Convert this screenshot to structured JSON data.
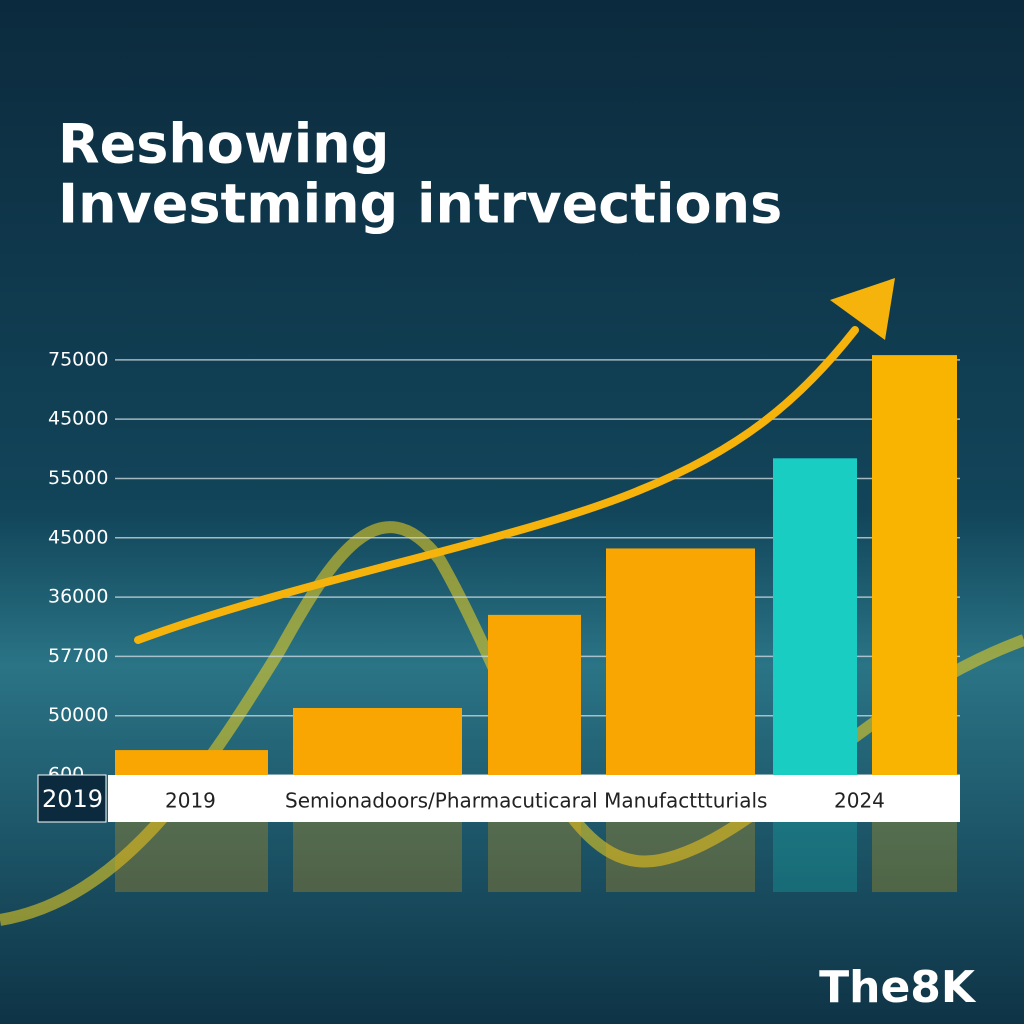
{
  "chart_data": {
    "type": "bar",
    "title": [
      "Reshowing",
      "Investming intrvections"
    ],
    "categories": [
      null,
      null,
      null,
      null,
      null,
      null
    ],
    "values": [
      0.42,
      1.13,
      2.7,
      3.82,
      5.34,
      7.08
    ],
    "colors": [
      "#f9a602",
      "#f9a602",
      "#f9a602",
      "#f9a602",
      "#19cdc3",
      "#f8b400"
    ],
    "ylim": [
      0,
      7.2
    ],
    "yticks": [
      {
        "value": 0,
        "label": "600"
      },
      {
        "value": 1,
        "label": "50000"
      },
      {
        "value": 2,
        "label": "57700"
      },
      {
        "value": 3,
        "label": "36000"
      },
      {
        "value": 4,
        "label": "45000"
      },
      {
        "value": 5,
        "label": "55000"
      },
      {
        "value": 6,
        "label": "45000"
      },
      {
        "value": 7,
        "label": "75000"
      }
    ],
    "grid": true,
    "strip_labels": [
      "2019",
      "2019",
      "Semionadoors/Pharmacuticaral Manufacttturials",
      "2024"
    ],
    "brand": "The8K"
  }
}
